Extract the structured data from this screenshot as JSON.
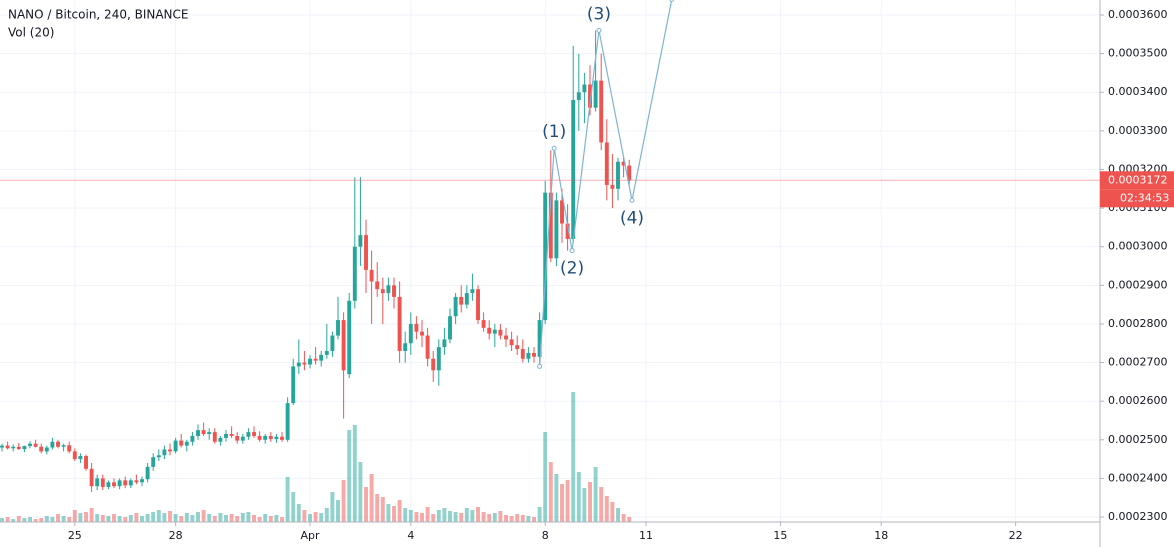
{
  "chart_data": {
    "type": "candlestick",
    "title": "NANO / Bitcoin, 240, BINANCE",
    "volume_title": "Vol (20)",
    "up_color": "#26a69a",
    "down_color": "#ef5350",
    "grid": true,
    "xlim": [
      -0.36,
      196.07
    ],
    "xticks": [
      {
        "value": 13,
        "label": "25"
      },
      {
        "value": 31,
        "label": "28"
      },
      {
        "value": 55,
        "label": "Apr"
      },
      {
        "value": 73,
        "label": "4"
      },
      {
        "value": 97,
        "label": "8"
      },
      {
        "value": 115,
        "label": "11"
      },
      {
        "value": 139,
        "label": "15"
      },
      {
        "value": 157,
        "label": "18"
      },
      {
        "value": 181,
        "label": "22"
      }
    ],
    "ylim": [
      0.00022872,
      0.00036388
    ],
    "yticks": [
      {
        "value": 0.00023,
        "label": "0.0002300"
      },
      {
        "value": 0.00024,
        "label": "0.0002400"
      },
      {
        "value": 0.00025,
        "label": "0.0002500"
      },
      {
        "value": 0.00026,
        "label": "0.0002600"
      },
      {
        "value": 0.00027,
        "label": "0.0002700"
      },
      {
        "value": 0.00028,
        "label": "0.0002800"
      },
      {
        "value": 0.00029,
        "label": "0.0002900"
      },
      {
        "value": 0.0003,
        "label": "0.0003000"
      },
      {
        "value": 0.00031,
        "label": "0.0003100"
      },
      {
        "value": 0.00032,
        "label": "0.0003200"
      },
      {
        "value": 0.00033,
        "label": "0.0003300"
      },
      {
        "value": 0.00034,
        "label": "0.0003400"
      },
      {
        "value": 0.00035,
        "label": "0.0003500"
      },
      {
        "value": 0.00036,
        "label": "0.0003600"
      }
    ],
    "last_price": {
      "value": 0.0003172,
      "label": "0.0003172"
    },
    "countdown": "02:34:53",
    "open": [
      0.000248,
      0.0002485,
      0.0002478,
      0.0002482,
      0.0002476,
      0.0002484,
      0.000249,
      0.0002482,
      0.000247,
      0.000248,
      0.0002495,
      0.0002482,
      0.0002486,
      0.000247,
      0.000245,
      0.0002458,
      0.0002425,
      0.000238,
      0.00024,
      0.0002378,
      0.000239,
      0.000238,
      0.0002395,
      0.0002382,
      0.0002395,
      0.000239,
      0.0002398,
      0.000243,
      0.0002455,
      0.000246,
      0.0002475,
      0.000247,
      0.0002498,
      0.0002485,
      0.0002495,
      0.000251,
      0.0002525,
      0.0002515,
      0.000252,
      0.0002495,
      0.0002505,
      0.0002515,
      0.000251,
      0.0002498,
      0.0002508,
      0.000252,
      0.000251,
      0.00025,
      0.000251,
      0.0002502,
      0.0002508,
      0.00025,
      0.0002595,
      0.000269,
      0.00027,
      0.0002695,
      0.000271,
      0.0002705,
      0.000272,
      0.000273,
      0.000277,
      0.000281,
      0.000267,
      0.000286,
      0.0003,
      0.000303,
      0.000294,
      0.000291,
      0.000289,
      0.000288,
      0.00029,
      0.000287,
      0.000273,
      0.000275,
      0.00028,
      0.000278,
      0.000277,
      0.000271,
      0.000268,
      0.000274,
      0.000276,
      0.000282,
      0.000287,
      0.000285,
      0.000288,
      0.000289,
      0.000281,
      0.000279,
      0.0002775,
      0.0002785,
      0.000277,
      0.000276,
      0.0002745,
      0.0002735,
      0.000271,
      0.0002725,
      0.0002715,
      0.000281,
      0.000314,
      0.000297,
      0.000312,
      0.000306,
      0.000302,
      0.000338,
      0.00034,
      0.000342,
      0.000336,
      0.000343,
      0.000327,
      0.000316,
      0.000315,
      0.000322,
      0.000321
    ],
    "high": [
      0.000249,
      0.0002495,
      0.0002488,
      0.0002492,
      0.0002485,
      0.0002496,
      0.00025,
      0.000249,
      0.0002485,
      0.0002505,
      0.00025,
      0.000249,
      0.0002495,
      0.0002478,
      0.0002465,
      0.0002462,
      0.000244,
      0.000241,
      0.000241,
      0.0002395,
      0.00024,
      0.00024,
      0.0002405,
      0.00024,
      0.000241,
      0.0002405,
      0.000244,
      0.0002465,
      0.0002475,
      0.0002485,
      0.000249,
      0.0002505,
      0.0002515,
      0.00025,
      0.000252,
      0.000254,
      0.0002545,
      0.000253,
      0.000253,
      0.000251,
      0.0002525,
      0.0002535,
      0.000252,
      0.0002515,
      0.000253,
      0.0002535,
      0.0002522,
      0.0002515,
      0.000252,
      0.0002515,
      0.000252,
      0.000261,
      0.000271,
      0.000276,
      0.000273,
      0.000272,
      0.000274,
      0.000273,
      0.00028,
      0.000278,
      0.000287,
      0.000283,
      0.000288,
      0.000318,
      0.000318,
      0.000307,
      0.000299,
      0.000296,
      0.000292,
      0.000292,
      0.000292,
      0.000291,
      0.000278,
      0.000283,
      0.000282,
      0.000281,
      0.000279,
      0.000273,
      0.000276,
      0.000279,
      0.000284,
      0.000288,
      0.00029,
      0.00029,
      0.000293,
      0.00029,
      0.000283,
      0.000281,
      0.00028,
      0.00028,
      0.000279,
      0.000278,
      0.000277,
      0.000276,
      0.000274,
      0.000274,
      0.000283,
      0.000317,
      0.000325,
      0.000314,
      0.000315,
      0.000311,
      0.000352,
      0.00035,
      0.000345,
      0.000347,
      0.000356,
      0.00035,
      0.000333,
      0.000324,
      0.000323,
      0.000323,
      0.0003225
    ],
    "low": [
      0.000247,
      0.0002475,
      0.000247,
      0.0002474,
      0.0002468,
      0.0002478,
      0.000248,
      0.0002465,
      0.0002462,
      0.0002475,
      0.0002478,
      0.000247,
      0.0002465,
      0.0002445,
      0.000244,
      0.000242,
      0.0002365,
      0.000237,
      0.000237,
      0.0002372,
      0.0002375,
      0.0002372,
      0.0002375,
      0.0002375,
      0.0002385,
      0.000238,
      0.000239,
      0.000242,
      0.0002445,
      0.000245,
      0.000246,
      0.0002465,
      0.000248,
      0.000247,
      0.0002485,
      0.00025,
      0.000251,
      0.00025,
      0.000249,
      0.0002485,
      0.0002495,
      0.0002505,
      0.000249,
      0.000249,
      0.00025,
      0.0002505,
      0.0002495,
      0.000249,
      0.0002495,
      0.0002492,
      0.0002495,
      0.0002495,
      0.000259,
      0.000267,
      0.000268,
      0.0002685,
      0.0002695,
      0.000269,
      0.000271,
      0.0002715,
      0.000276,
      0.0002555,
      0.000266,
      0.000284,
      0.000295,
      0.000288,
      0.00028,
      0.000287,
      0.00028,
      0.000286,
      0.000284,
      0.00027,
      0.00027,
      0.000272,
      0.000276,
      0.000274,
      0.000269,
      0.000265,
      0.000264,
      0.000272,
      0.000275,
      0.00028,
      0.000283,
      0.000284,
      0.000286,
      0.00028,
      0.000278,
      0.000276,
      0.000274,
      0.000276,
      0.000274,
      0.000273,
      0.000272,
      0.00027,
      0.00027,
      0.00027,
      0.000269,
      0.00028,
      0.000296,
      0.000295,
      0.000301,
      0.000299,
      0.000301,
      0.00033,
      0.000332,
      0.000334,
      0.000335,
      0.000325,
      0.000312,
      0.00031,
      0.000312,
      0.000318,
      0.000316
    ],
    "close": [
      0.0002485,
      0.0002478,
      0.0002482,
      0.0002476,
      0.0002484,
      0.000249,
      0.0002482,
      0.000247,
      0.000248,
      0.0002495,
      0.0002482,
      0.0002486,
      0.000247,
      0.000245,
      0.0002458,
      0.0002425,
      0.000238,
      0.00024,
      0.0002378,
      0.000239,
      0.000238,
      0.0002395,
      0.0002382,
      0.0002395,
      0.000239,
      0.0002398,
      0.000243,
      0.0002455,
      0.000246,
      0.0002475,
      0.000247,
      0.0002498,
      0.0002485,
      0.0002495,
      0.000251,
      0.0002525,
      0.0002515,
      0.000252,
      0.0002495,
      0.0002505,
      0.0002515,
      0.000251,
      0.0002498,
      0.0002508,
      0.000252,
      0.000251,
      0.00025,
      0.000251,
      0.0002502,
      0.0002508,
      0.00025,
      0.0002595,
      0.000269,
      0.00027,
      0.0002695,
      0.000271,
      0.0002705,
      0.000272,
      0.000273,
      0.000277,
      0.000281,
      0.000268,
      0.000286,
      0.0003,
      0.000303,
      0.000294,
      0.000291,
      0.000289,
      0.000288,
      0.00029,
      0.000287,
      0.000273,
      0.000275,
      0.00028,
      0.000278,
      0.000277,
      0.000271,
      0.000268,
      0.000274,
      0.000276,
      0.000282,
      0.000287,
      0.000285,
      0.000288,
      0.000289,
      0.000281,
      0.000279,
      0.0002775,
      0.0002785,
      0.000277,
      0.000276,
      0.0002745,
      0.0002735,
      0.000271,
      0.0002725,
      0.0002715,
      0.000281,
      0.000314,
      0.000297,
      0.000312,
      0.000306,
      0.000302,
      0.000338,
      0.00034,
      0.000342,
      0.000336,
      0.000343,
      0.000327,
      0.000316,
      0.000315,
      0.000322,
      0.000321,
      0.0003172
    ],
    "volume": [
      4,
      5,
      3,
      6,
      4,
      5,
      3,
      4,
      6,
      5,
      8,
      6,
      5,
      12,
      9,
      10,
      14,
      8,
      7,
      6,
      8,
      6,
      5,
      7,
      9,
      6,
      8,
      10,
      12,
      9,
      11,
      8,
      6,
      9,
      7,
      10,
      12,
      8,
      6,
      9,
      7,
      8,
      6,
      9,
      10,
      7,
      5,
      8,
      6,
      7,
      5,
      45,
      30,
      18,
      12,
      8,
      10,
      9,
      14,
      30,
      22,
      42,
      92,
      97,
      60,
      35,
      48,
      28,
      25,
      18,
      16,
      22,
      14,
      12,
      10,
      9,
      15,
      8,
      12,
      14,
      11,
      10,
      9,
      14,
      12,
      15,
      10,
      8,
      9,
      11,
      7,
      6,
      8,
      7,
      6,
      5,
      15,
      90,
      60,
      48,
      38,
      42,
      130,
      50,
      34,
      40,
      55,
      35,
      26,
      20,
      14,
      8,
      5
    ],
    "wave": {
      "color": "#7fb3d5",
      "x": [
        96,
        98.6,
        101.8,
        106.6,
        112.5,
        119.6
      ],
      "y": [
        0.000269,
        0.0003255,
        0.000299,
        0.000356,
        0.000312,
        0.000364
      ],
      "labels": [
        null,
        "(1)",
        "(2)",
        "(3)",
        "(4)",
        null
      ]
    }
  }
}
